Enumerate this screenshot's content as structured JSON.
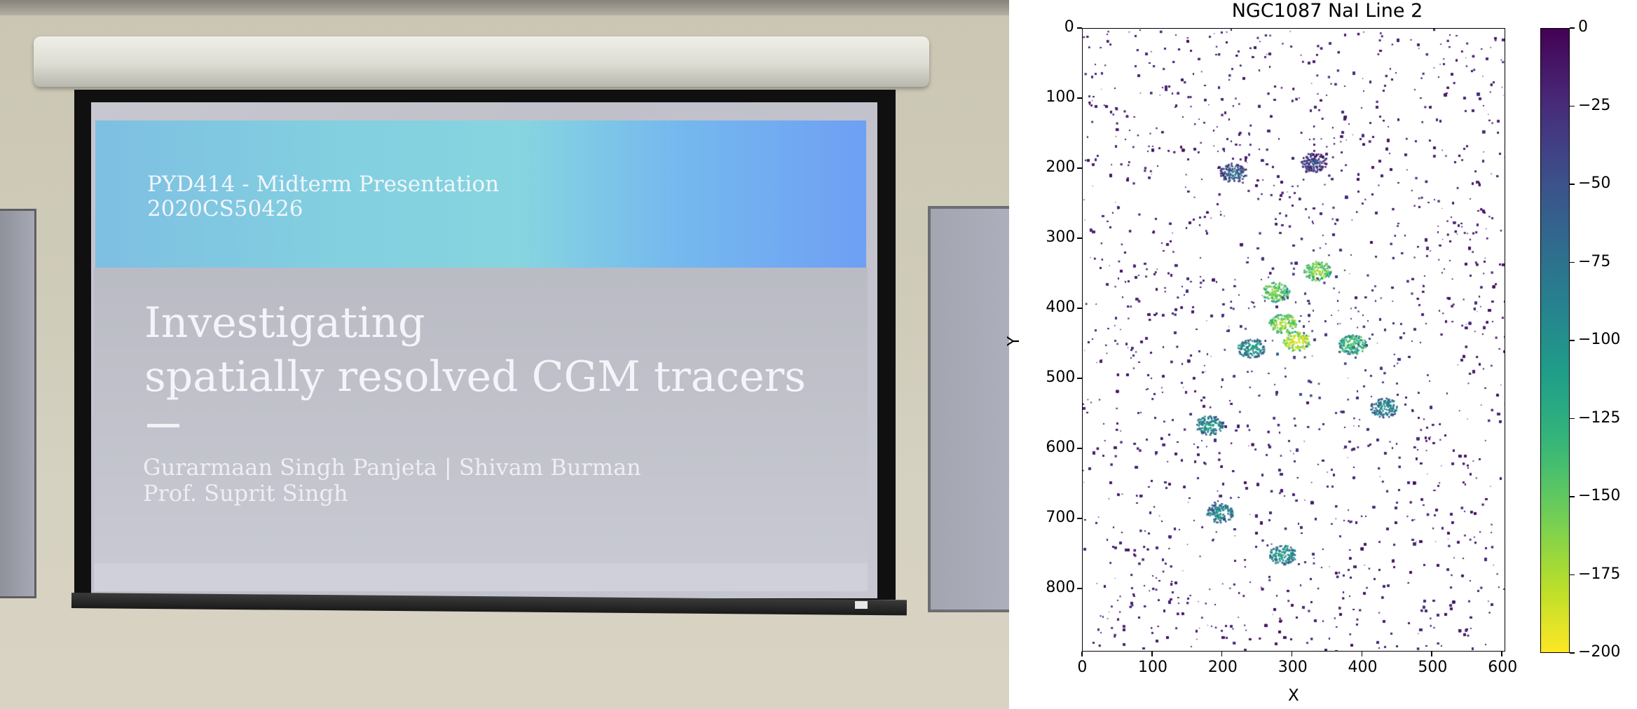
{
  "photo": {
    "slide": {
      "course": "PYD414 - Midterm Presentation",
      "roll_number": "2020CS50426",
      "title_line1": "Investigating",
      "title_line2": "spatially resolved CGM tracers",
      "authors": "Gurarmaan Singh Panjeta | Shivam Burman",
      "professor": "Prof. Suprit Singh"
    }
  },
  "chart_data": {
    "type": "heatmap",
    "title": "NGC1087 NaI Line 2",
    "xlabel": "X",
    "ylabel": "Y",
    "xlim": [
      0,
      605
    ],
    "ylim": [
      890,
      0
    ],
    "x_ticks": [
      0,
      100,
      200,
      300,
      400,
      500,
      600
    ],
    "y_ticks": [
      0,
      100,
      200,
      300,
      400,
      500,
      600,
      700,
      800
    ],
    "colorbar": {
      "colormap": "viridis",
      "range": [
        -200,
        0
      ],
      "ticks": [
        "0",
        "−25",
        "−50",
        "−75",
        "−100",
        "−125",
        "−150",
        "−175",
        "−200"
      ],
      "tick_values": [
        0,
        -25,
        -50,
        -75,
        -100,
        -125,
        -150,
        -175,
        -200
      ]
    },
    "background_color": "#ffffff",
    "approx_galaxy_center": [
      320,
      440
    ],
    "bright_features": [
      {
        "x": 305,
        "y": 445,
        "value": -200
      },
      {
        "x": 285,
        "y": 420,
        "value": -185
      },
      {
        "x": 335,
        "y": 345,
        "value": -180
      },
      {
        "x": 275,
        "y": 375,
        "value": -170
      },
      {
        "x": 385,
        "y": 450,
        "value": -150
      },
      {
        "x": 240,
        "y": 455,
        "value": -120
      },
      {
        "x": 195,
        "y": 690,
        "value": -110
      },
      {
        "x": 285,
        "y": 750,
        "value": -120
      },
      {
        "x": 180,
        "y": 565,
        "value": -115
      },
      {
        "x": 430,
        "y": 540,
        "value": -110
      },
      {
        "x": 330,
        "y": 190,
        "value": -60
      },
      {
        "x": 215,
        "y": 205,
        "value": -80
      }
    ]
  }
}
